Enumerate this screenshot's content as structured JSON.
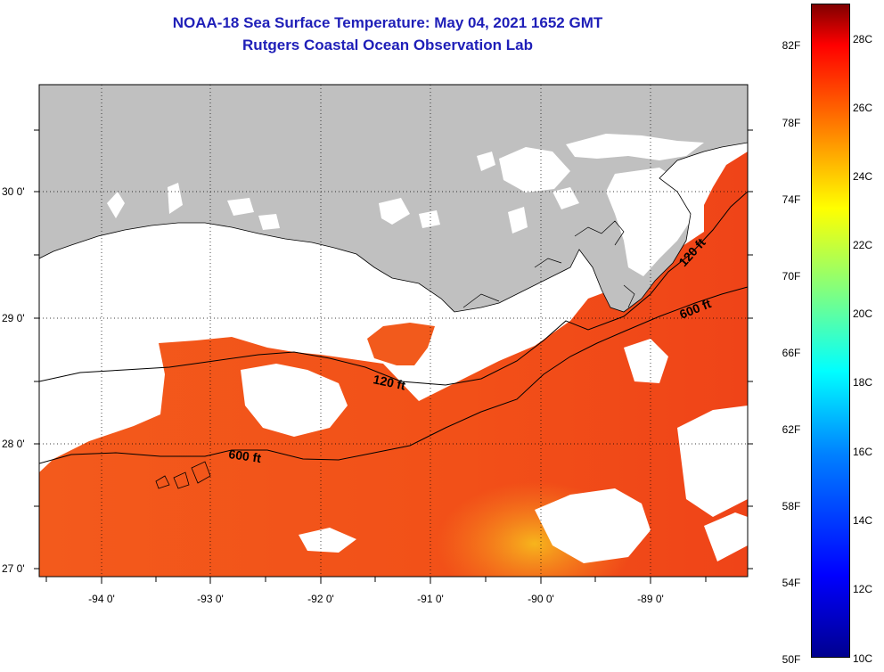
{
  "header": {
    "title": "NOAA-18 Sea Surface Temperature:  May 04, 2021 1652 GMT",
    "subtitle": "Rutgers Coastal Ocean Observation Lab"
  },
  "map": {
    "lat_ticks": [
      "30 0'",
      "29 0'",
      "28 0'",
      "27 0'"
    ],
    "lon_ticks": [
      "-94 0'",
      "-93 0'",
      "-92 0'",
      "-91 0'",
      "-90 0'",
      "-89 0'"
    ],
    "contours": [
      {
        "label": "120 ft"
      },
      {
        "label": "600 ft"
      },
      {
        "label": "120 ft"
      },
      {
        "label": "600 ft"
      }
    ],
    "colors": {
      "land": "#c0c0c0",
      "cloud": "#ffffff",
      "sst_warm": "#f2551a",
      "sst_warmer": "#f0431a",
      "sst_cool": "#f79a22"
    }
  },
  "colorbar": {
    "fahrenheit": [
      "82F",
      "78F",
      "74F",
      "70F",
      "66F",
      "62F",
      "58F",
      "54F",
      "50F"
    ],
    "celsius": [
      "28C",
      "26C",
      "24C",
      "22C",
      "20C",
      "18C",
      "16C",
      "14C",
      "12C",
      "10C"
    ]
  }
}
